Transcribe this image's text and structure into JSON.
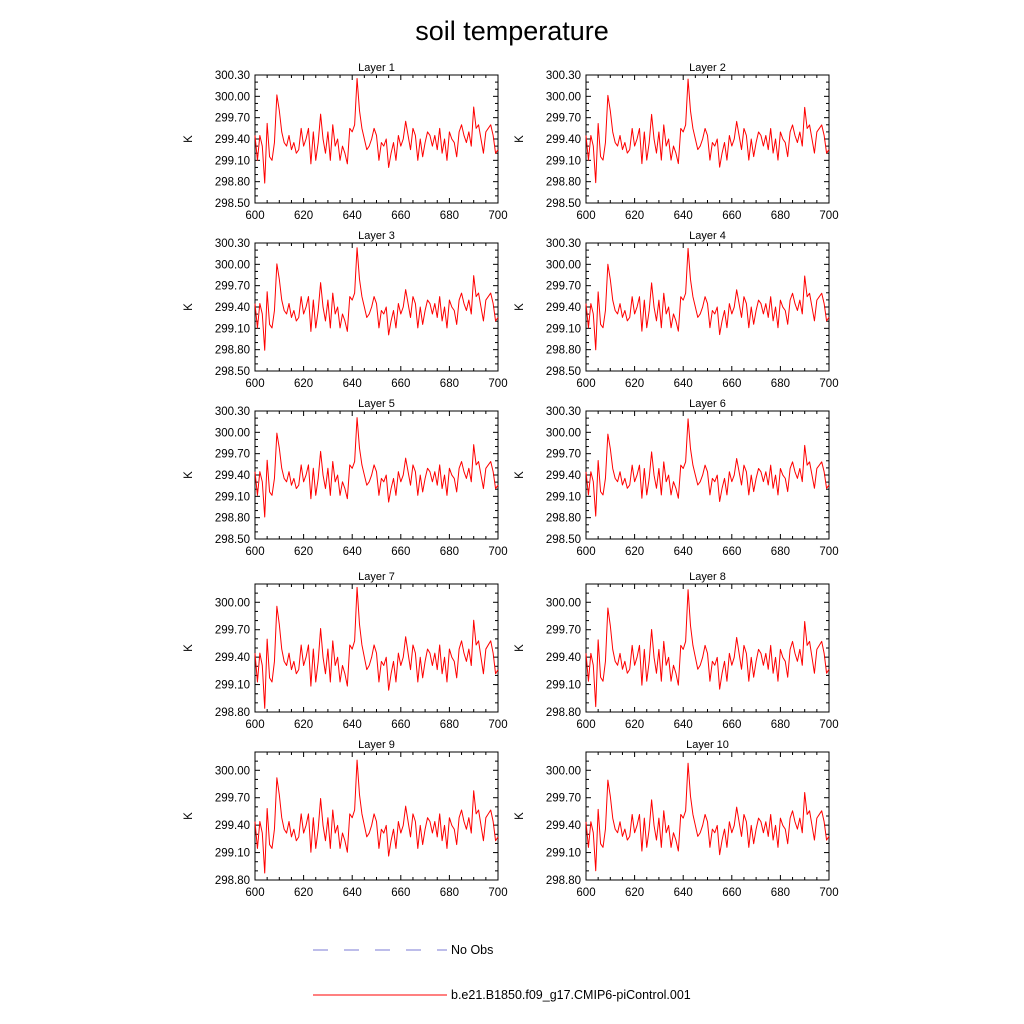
{
  "figure_title": "soil temperature",
  "legend": [
    {
      "label": "No Obs",
      "color": "#7b7bd6",
      "dash": "dashed"
    },
    {
      "label": "b.e21.B1850.f09_g17.CMIP6-piControl.001",
      "color": "#ff0000",
      "dash": "solid"
    }
  ],
  "chart_data": {
    "type": "line",
    "title": "soil temperature",
    "ylabel": "K",
    "xlim": [
      600,
      700
    ],
    "x_ticks": [
      600,
      620,
      640,
      660,
      680,
      700
    ],
    "x_start": 600,
    "x_step": 1,
    "series_color": "#ff0000",
    "base_series": [
      299.45,
      299.1,
      299.45,
      299.3,
      298.78,
      299.62,
      299.15,
      299.1,
      299.35,
      300.02,
      299.8,
      299.5,
      299.35,
      299.3,
      299.45,
      299.25,
      299.35,
      299.2,
      299.25,
      299.55,
      299.3,
      299.4,
      299.55,
      299.05,
      299.5,
      299.1,
      299.35,
      299.75,
      299.4,
      299.2,
      299.5,
      299.1,
      299.6,
      299.3,
      299.4,
      299.1,
      299.3,
      299.2,
      299.05,
      299.55,
      299.5,
      299.6,
      300.25,
      299.8,
      299.55,
      299.4,
      299.25,
      299.3,
      299.4,
      299.55,
      299.45,
      299.1,
      299.35,
      299.3,
      299.4,
      299.0,
      299.2,
      299.35,
      299.1,
      299.45,
      299.3,
      299.4,
      299.65,
      299.45,
      299.25,
      299.55,
      299.45,
      299.1,
      299.4,
      299.15,
      299.35,
      299.5,
      299.45,
      299.3,
      299.45,
      299.25,
      299.55,
      299.2,
      299.4,
      299.1,
      299.5,
      299.4,
      299.35,
      299.15,
      299.5,
      299.6,
      299.45,
      299.35,
      299.5,
      299.3,
      299.85,
      299.55,
      299.6,
      299.4,
      299.2,
      299.5,
      299.55,
      299.6,
      299.45,
      299.2,
      299.25
    ],
    "subplots": [
      {
        "title": "Layer 1",
        "ylim": [
          298.5,
          300.3
        ],
        "yticks": [
          "298.50",
          "298.80",
          "299.10",
          "299.40",
          "299.70",
          "300.00",
          "300.30"
        ],
        "damp": 1.0
      },
      {
        "title": "Layer 2",
        "ylim": [
          298.5,
          300.3
        ],
        "yticks": [
          "298.50",
          "298.80",
          "299.10",
          "299.40",
          "299.70",
          "300.00",
          "300.30"
        ],
        "damp": 0.99
      },
      {
        "title": "Layer 3",
        "ylim": [
          298.5,
          300.3
        ],
        "yticks": [
          "298.50",
          "298.80",
          "299.10",
          "299.40",
          "299.70",
          "300.00",
          "300.30"
        ],
        "damp": 0.98
      },
      {
        "title": "Layer 4",
        "ylim": [
          298.5,
          300.3
        ],
        "yticks": [
          "298.50",
          "298.80",
          "299.10",
          "299.40",
          "299.70",
          "300.00",
          "300.30"
        ],
        "damp": 0.97
      },
      {
        "title": "Layer 5",
        "ylim": [
          298.5,
          300.3
        ],
        "yticks": [
          "298.50",
          "298.80",
          "299.10",
          "299.40",
          "299.70",
          "300.00",
          "300.30"
        ],
        "damp": 0.95
      },
      {
        "title": "Layer 6",
        "ylim": [
          298.5,
          300.3
        ],
        "yticks": [
          "298.50",
          "298.80",
          "299.10",
          "299.40",
          "299.70",
          "300.00",
          "300.30"
        ],
        "damp": 0.93
      },
      {
        "title": "Layer 7",
        "ylim": [
          298.8,
          300.2
        ],
        "yticks": [
          "298.80",
          "299.10",
          "299.40",
          "299.70",
          "300.00"
        ],
        "damp": 0.9
      },
      {
        "title": "Layer 8",
        "ylim": [
          298.8,
          300.2
        ],
        "yticks": [
          "298.80",
          "299.10",
          "299.40",
          "299.70",
          "300.00"
        ],
        "damp": 0.87
      },
      {
        "title": "Layer 9",
        "ylim": [
          298.8,
          300.2
        ],
        "yticks": [
          "298.80",
          "299.10",
          "299.40",
          "299.70",
          "300.00"
        ],
        "damp": 0.84
      },
      {
        "title": "Layer 10",
        "ylim": [
          298.8,
          300.2
        ],
        "yticks": [
          "298.80",
          "299.10",
          "299.40",
          "299.70",
          "300.00"
        ],
        "damp": 0.8
      }
    ]
  }
}
